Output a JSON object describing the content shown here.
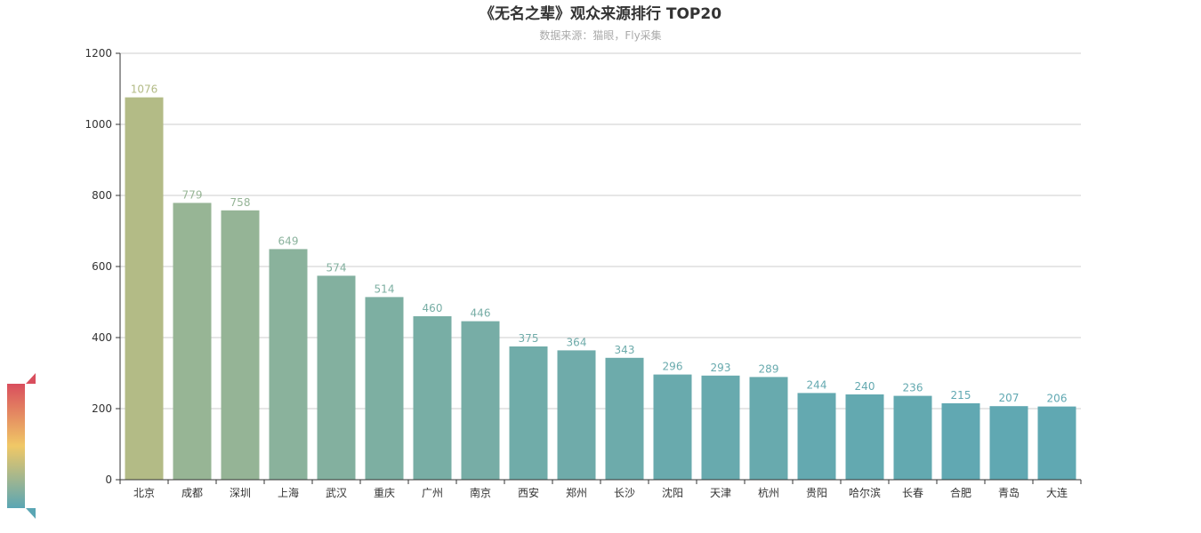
{
  "chart_data": {
    "type": "bar",
    "title": "《无名之辈》观众来源排行 TOP20",
    "subtitle": "数据来源：猫眼，Fly采集",
    "categories": [
      "北京",
      "成都",
      "深圳",
      "上海",
      "武汉",
      "重庆",
      "广州",
      "南京",
      "西安",
      "郑州",
      "长沙",
      "沈阳",
      "天津",
      "杭州",
      "贵阳",
      "哈尔滨",
      "长春",
      "合肥",
      "青岛",
      "大连"
    ],
    "values": [
      1076,
      779,
      758,
      649,
      574,
      514,
      460,
      446,
      375,
      364,
      343,
      296,
      293,
      289,
      244,
      240,
      236,
      215,
      207,
      206
    ],
    "ylim": [
      0,
      1200
    ],
    "yticks": [
      "0",
      "200",
      "400",
      "600",
      "800",
      "1000",
      "1200"
    ],
    "grid": true,
    "visual_map": {
      "orientation": "vertical",
      "position": "bottom-left",
      "colors": [
        "#5aa6b4",
        "#f0c866",
        "#d94e5d"
      ],
      "range": [
        206,
        1076
      ],
      "bar_colors": {
        "high": "#b3bb86",
        "low": "#60a8b2"
      }
    }
  }
}
